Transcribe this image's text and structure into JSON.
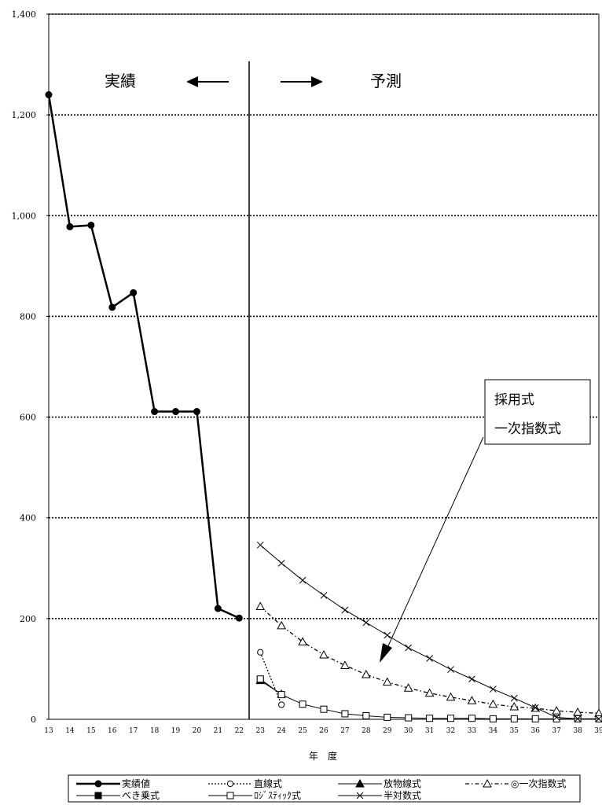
{
  "chart_data": {
    "type": "line",
    "x": [
      13,
      14,
      15,
      16,
      17,
      18,
      19,
      20,
      21,
      22,
      23,
      24,
      25,
      26,
      27,
      28,
      29,
      30,
      31,
      32,
      33,
      34,
      35,
      36,
      37,
      38,
      39
    ],
    "x_tick_labels": [
      "13",
      "14",
      "15",
      "16",
      "17",
      "18",
      "19",
      "20",
      "21",
      "22",
      "23",
      "24",
      "25",
      "26",
      "27",
      "28",
      "29",
      "30",
      "31",
      "32",
      "33",
      "34",
      "35",
      "36",
      "37",
      "38",
      "39"
    ],
    "xlabel": "年　度",
    "ylabel": "",
    "ylim": [
      0,
      1400
    ],
    "y_ticks": [
      0,
      200,
      400,
      600,
      800,
      1000,
      1200,
      1400
    ],
    "y_tick_labels": [
      "0",
      "200",
      "400",
      "600",
      "800",
      "1,000",
      "1,200",
      "1,400"
    ],
    "grid": "horizontal dotted",
    "divider_x": 22.5,
    "region_labels": {
      "past": "実績",
      "future": "予測"
    },
    "annotation": {
      "line1": "採用式",
      "line2": "一次指数式"
    },
    "legend_position": "bottom",
    "series": [
      {
        "name": "実績値",
        "marker": "filled-circle",
        "line": "solid-thick",
        "x": [
          13,
          14,
          15,
          16,
          17,
          18,
          19,
          20,
          21,
          22
        ],
        "values": [
          1240,
          978,
          981,
          818,
          847,
          611,
          611,
          611,
          220,
          201
        ]
      },
      {
        "name": "直線式",
        "marker": "open-circle",
        "line": "dotted",
        "x": [
          23,
          24
        ],
        "values": [
          133,
          29
        ]
      },
      {
        "name": "放物線式",
        "marker": "filled-triangle",
        "line": "solid",
        "x": [
          23,
          24
        ],
        "values": [
          77,
          50
        ]
      },
      {
        "name": "一次指数式",
        "legend_label": "◎一次指数式",
        "marker": "open-triangle",
        "line": "dash-dot",
        "x": [
          23,
          24,
          25,
          26,
          27,
          28,
          29,
          30,
          31,
          32,
          33,
          34,
          35,
          36,
          37,
          38,
          39
        ],
        "values": [
          224,
          186,
          154,
          128,
          107,
          89,
          74,
          62,
          52,
          44,
          37,
          30,
          25,
          22,
          17,
          14,
          12
        ]
      },
      {
        "name": "べき乗式",
        "marker": "filled-square",
        "line": "solid",
        "x": [
          23
        ],
        "values": [
          79
        ]
      },
      {
        "name": "ﾛｼﾞｽﾃｨｯｸ式",
        "marker": "open-square",
        "line": "solid",
        "x": [
          23,
          24,
          25,
          26,
          27,
          28,
          29,
          30,
          31,
          32,
          33,
          34,
          35,
          36,
          37,
          38,
          39
        ],
        "values": [
          80,
          49,
          30,
          20,
          11,
          7,
          4,
          3,
          2,
          2,
          2,
          1,
          1,
          1,
          1,
          1,
          1
        ]
      },
      {
        "name": "半対数式",
        "marker": "x",
        "line": "solid",
        "x": [
          23,
          24,
          25,
          26,
          27,
          28,
          29,
          30,
          31,
          32,
          33,
          34,
          35,
          36,
          37,
          38,
          39
        ],
        "values": [
          346,
          310,
          276,
          246,
          217,
          192,
          167,
          142,
          121,
          99,
          80,
          60,
          42,
          23,
          4,
          1,
          1
        ]
      }
    ]
  }
}
